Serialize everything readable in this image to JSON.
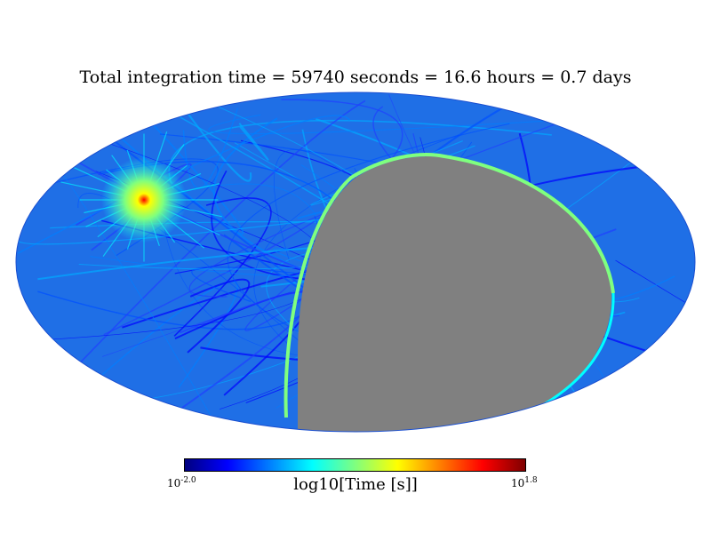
{
  "chart_data": {
    "type": "heatmap",
    "projection": "mollweide",
    "title": "Total integration time = 59740 seconds = 16.6 hours = 0.7 days",
    "colorbar": {
      "label": "log10[Time [s]]",
      "min_base": "10",
      "min_exp": "-2.0",
      "max_base": "10",
      "max_exp": "1.8",
      "vmin_log10": -2.0,
      "vmax_log10": 1.8,
      "colormap": [
        "#00007f",
        "#0000ff",
        "#007fff",
        "#00ffff",
        "#7fff7f",
        "#ffff00",
        "#ff7f00",
        "#ff0000",
        "#7f0000"
      ]
    },
    "unobserved_color": "#808080",
    "hotspot_log10": 1.6,
    "typical_log10": -0.8
  }
}
